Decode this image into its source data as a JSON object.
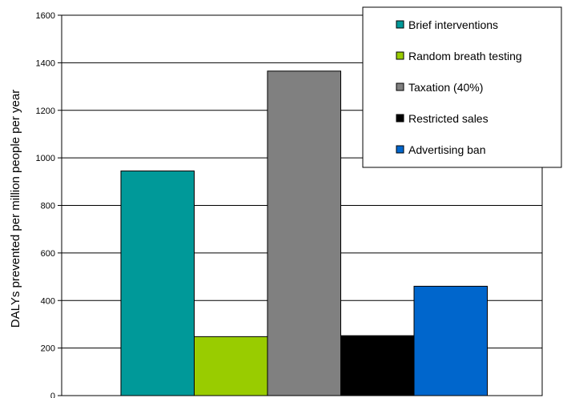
{
  "chart_data": {
    "type": "bar",
    "ylabel": "DALYs prevented per million people per year",
    "xlabel": "",
    "ylim": [
      0,
      1600
    ],
    "yticks": [
      0,
      200,
      400,
      600,
      800,
      1000,
      1200,
      1400,
      1600
    ],
    "grid": true,
    "legend_position": "top-right",
    "series": [
      {
        "name": "Brief interventions",
        "value": 945,
        "color": "#009999"
      },
      {
        "name": "Random breath testing",
        "value": 248,
        "color": "#99cc00"
      },
      {
        "name": "Taxation (40%)",
        "value": 1365,
        "color": "#808080"
      },
      {
        "name": "Restricted sales",
        "value": 252,
        "color": "#000000"
      },
      {
        "name": "Advertising ban",
        "value": 460,
        "color": "#0066cc"
      }
    ]
  }
}
